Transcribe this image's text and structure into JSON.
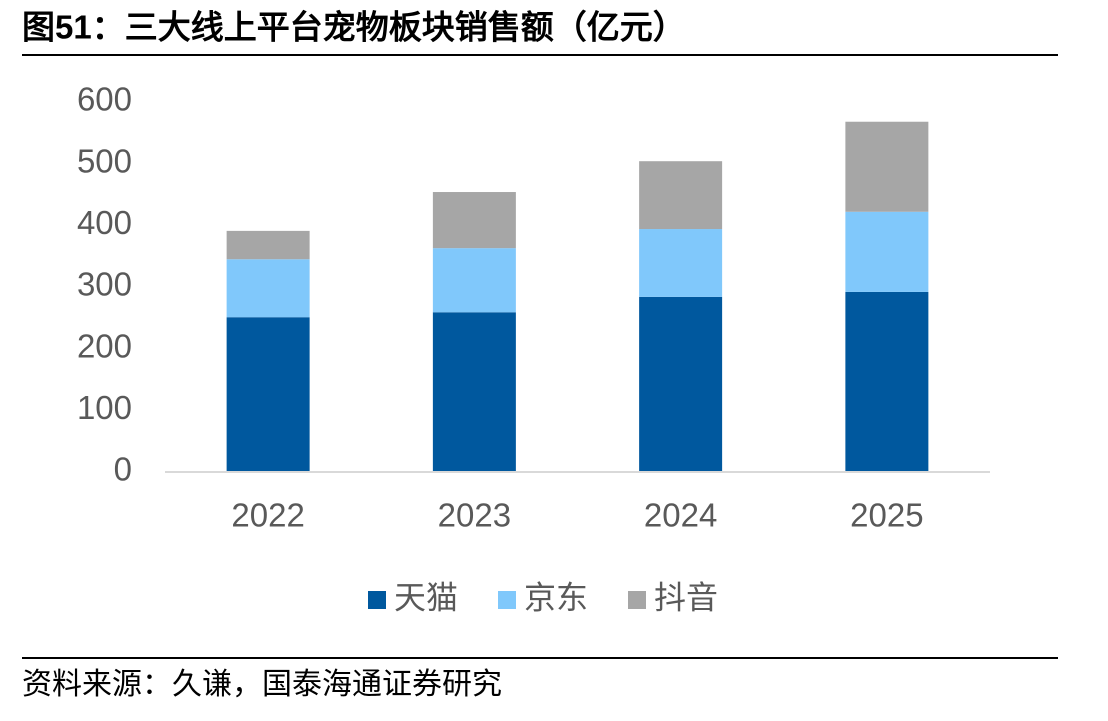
{
  "chart_data": {
    "type": "stacked_bar",
    "title": "图51：三大线上平台宠物板块销售额（亿元）",
    "source": "资料来源：久谦，国泰海通证券研究",
    "categories": [
      "2022",
      "2023",
      "2024",
      "2025"
    ],
    "series": [
      {
        "name": "天猫",
        "color": "#00589e",
        "values": [
          251,
          259,
          284,
          292
        ]
      },
      {
        "name": "京东",
        "color": "#80c8fb",
        "values": [
          94,
          104,
          110,
          130
        ]
      },
      {
        "name": "抖音",
        "color": "#a6a6a6",
        "values": [
          46,
          91,
          110,
          146
        ]
      }
    ],
    "ylim": [
      0,
      600
    ],
    "yticks": [
      0,
      100,
      200,
      300,
      400,
      500,
      600
    ],
    "grid": false,
    "legend": "bottom"
  }
}
